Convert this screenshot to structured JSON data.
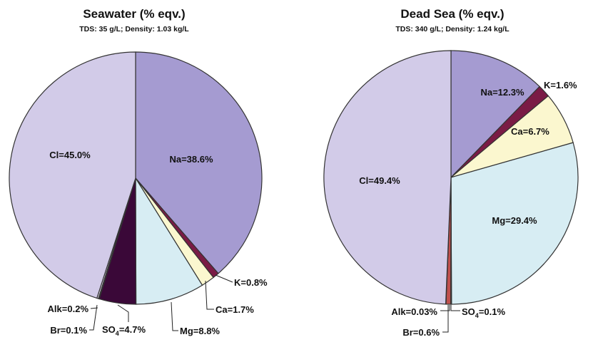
{
  "chart_data": [
    {
      "type": "pie",
      "title": "Seawater (% eqv.)",
      "subtitle": "TDS: 35 g/L; Density: 1.03 kg/L",
      "slices": [
        {
          "name": "Na",
          "label": "Na=38.6%",
          "value": 38.6,
          "color": "#a59bd1"
        },
        {
          "name": "K",
          "label": "K=0.8%",
          "value": 0.8,
          "color": "#7a1b45"
        },
        {
          "name": "Ca",
          "label": "Ca=1.7%",
          "value": 1.7,
          "color": "#fbf7cf"
        },
        {
          "name": "Mg",
          "label": "Mg=8.8%",
          "value": 8.8,
          "color": "#d7edf3"
        },
        {
          "name": "SO4",
          "label_main": "SO",
          "label_sub": "4",
          "label_tail": "=4.7%",
          "value": 4.7,
          "color": "#3a0838"
        },
        {
          "name": "Br",
          "label": "Br=0.1%",
          "value": 0.1,
          "color": "#c0504d"
        },
        {
          "name": "Alk",
          "label": "Alk=0.2%",
          "value": 0.2,
          "color": "#e4dcef"
        },
        {
          "name": "Cl",
          "label": "Cl=45.0%",
          "value": 45.0,
          "color": "#d2cbe8"
        }
      ]
    },
    {
      "type": "pie",
      "title": "Dead Sea (% eqv.)",
      "subtitle": "TDS: 340 g/L; Density: 1.24 kg/L",
      "slices": [
        {
          "name": "Na",
          "label": "Na=12.3%",
          "value": 12.3,
          "color": "#a59bd1"
        },
        {
          "name": "K",
          "label": "K=1.6%",
          "value": 1.6,
          "color": "#7a1b45"
        },
        {
          "name": "Ca",
          "label": "Ca=6.7%",
          "value": 6.7,
          "color": "#fbf7cf"
        },
        {
          "name": "Mg",
          "label": "Mg=29.4%",
          "value": 29.4,
          "color": "#d7edf3"
        },
        {
          "name": "SO4",
          "label_main": "SO",
          "label_sub": "4",
          "label_tail": "=0.1%",
          "value": 0.1,
          "color": "#3a0838"
        },
        {
          "name": "Br",
          "label": "Br=0.6%",
          "value": 0.6,
          "color": "#c0504d"
        },
        {
          "name": "Alk",
          "label": "Alk=0.03%",
          "value": 0.03,
          "color": "#e4dcef"
        },
        {
          "name": "Cl",
          "label": "Cl=49.4%",
          "value": 49.4,
          "color": "#d2cbe8"
        }
      ]
    }
  ]
}
